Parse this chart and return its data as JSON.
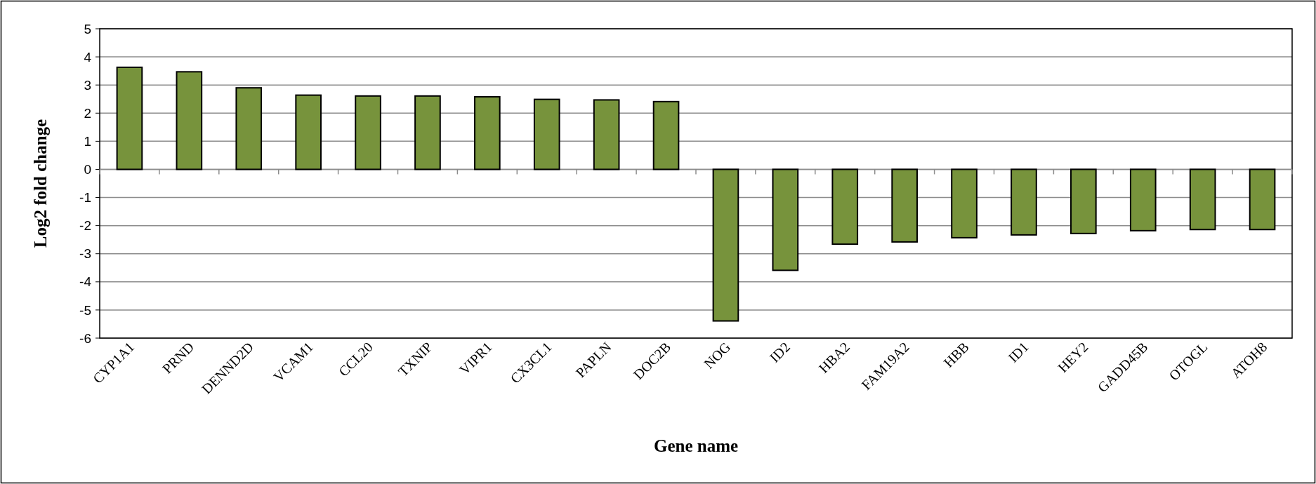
{
  "chart_data": {
    "type": "bar",
    "xlabel": "Gene name",
    "ylabel": "Log2 fold change",
    "categories": [
      "CYP1A1",
      "PRND",
      "DENND2D",
      "VCAM1",
      "CCL20",
      "TXNIP",
      "VIPR1",
      "CX3CL1",
      "PAPLN",
      "DOC2B",
      "NOG",
      "ID2",
      "HBA2",
      "FAM19A2",
      "HBB",
      "ID1",
      "HEY2",
      "GADD45B",
      "OTOGL",
      "ATOH8"
    ],
    "values": [
      3.63,
      3.47,
      2.9,
      2.64,
      2.61,
      2.61,
      2.58,
      2.49,
      2.47,
      2.41,
      -5.39,
      -3.59,
      -2.66,
      -2.58,
      -2.43,
      -2.33,
      -2.28,
      -2.18,
      -2.14,
      -2.14
    ],
    "color": "#77933c",
    "ylim": [
      -6,
      5
    ],
    "yticks": [
      -6,
      -5,
      -4,
      -3,
      -2,
      -1,
      0,
      1,
      2,
      3,
      4,
      5
    ],
    "grid": "y"
  }
}
